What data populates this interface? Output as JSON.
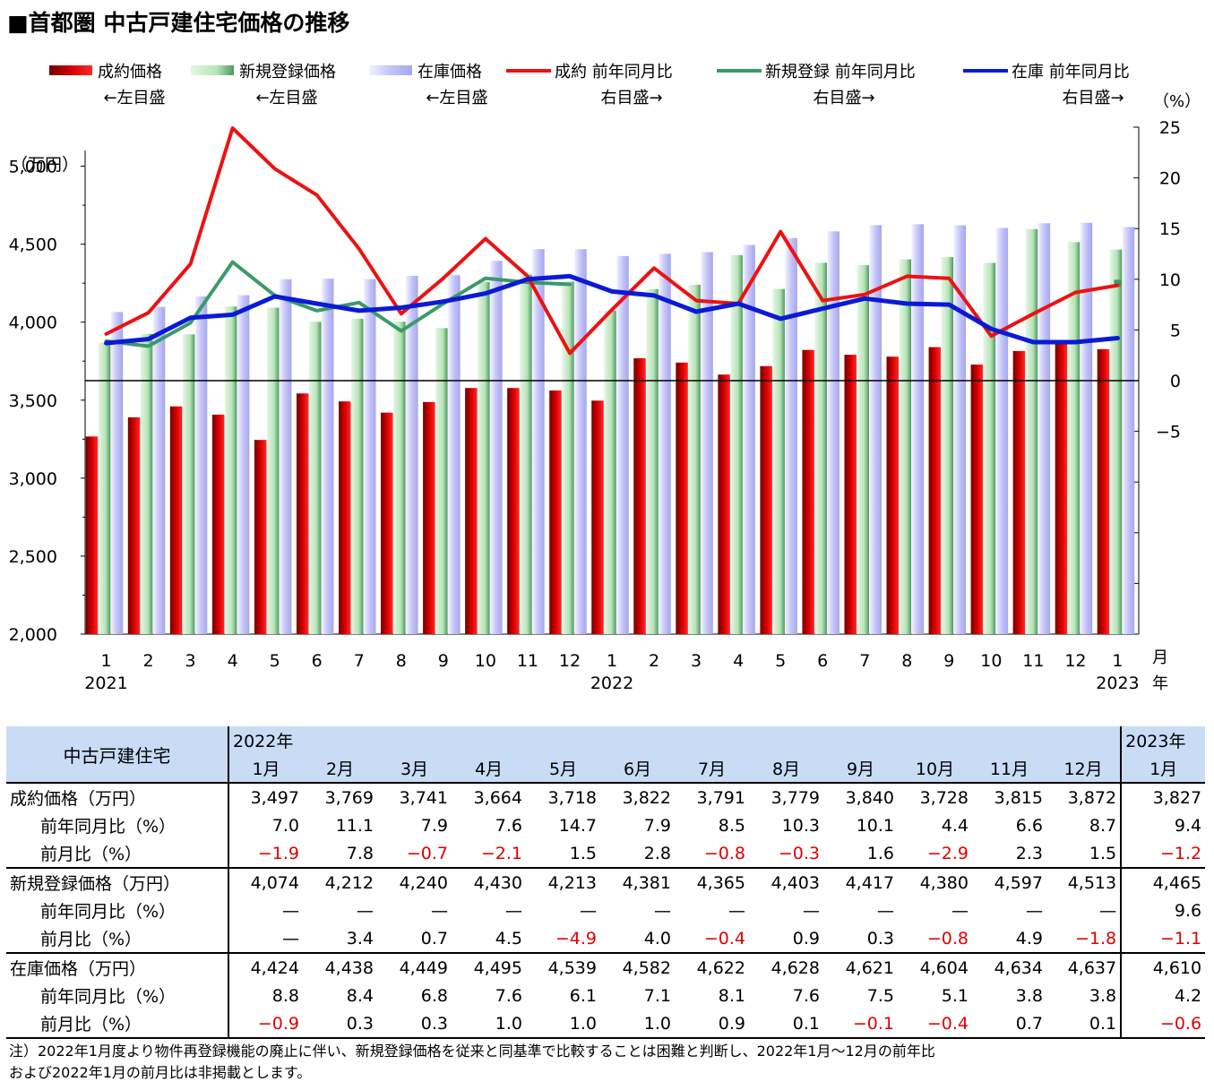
{
  "title": "■首都圏 中古戸建住宅価格の推移",
  "legend": [
    {
      "name": "成約価格",
      "sub": "←左目盛"
    },
    {
      "name": "新規登録価格",
      "sub": "←左目盛"
    },
    {
      "name": "在庫価格",
      "sub": "←左目盛"
    },
    {
      "name": "成約 前年同月比",
      "sub": "右目盛→"
    },
    {
      "name": "新規登録 前年同月比",
      "sub": "右目盛→"
    },
    {
      "name": "在庫 前年同月比",
      "sub": "右目盛→"
    }
  ],
  "colors": {
    "seiyaku_bar": "#dd0000",
    "shinki_bar": "#8fcf8f",
    "zaiko_bar": "#a6a6f0",
    "seiyaku_line": "#ee1111",
    "shinki_line": "#3a9a6a",
    "zaiko_line": "#0a1ad6",
    "header_bg": "#c9dcf6"
  },
  "chart_data": {
    "type": "bar",
    "left_axis_unit": "（万円）",
    "right_axis_unit": "（%）",
    "left_ticks": [
      "5,000",
      "4,500",
      "4,000",
      "3,500",
      "3,000",
      "2,500",
      "2,000"
    ],
    "right_ticks": [
      "25",
      "20",
      "15",
      "10",
      "5",
      "0",
      "−5"
    ],
    "ylim_left": [
      2000,
      5250
    ],
    "ylim_right": [
      -25,
      25
    ],
    "month_labels": [
      "1",
      "2",
      "3",
      "4",
      "5",
      "6",
      "7",
      "8",
      "9",
      "10",
      "11",
      "12",
      "1",
      "2",
      "3",
      "4",
      "5",
      "6",
      "7",
      "8",
      "9",
      "10",
      "11",
      "12",
      "1"
    ],
    "year_labels": [
      {
        "label": "2021",
        "index": 0
      },
      {
        "label": "2022",
        "index": 12
      },
      {
        "label": "2023",
        "index": 24
      }
    ],
    "month_suffix": "月",
    "year_suffix": "年",
    "series": [
      {
        "name": "成約価格",
        "type": "bar",
        "values": [
          3267,
          3390,
          3460,
          3407,
          3245,
          3543,
          3492,
          3420,
          3488,
          3578,
          3578,
          3562,
          3497,
          3769,
          3741,
          3664,
          3718,
          3822,
          3791,
          3779,
          3840,
          3728,
          3815,
          3872,
          3827
        ]
      },
      {
        "name": "新規登録価格",
        "type": "bar",
        "values": [
          3868,
          3925,
          3922,
          4100,
          4093,
          4002,
          4022,
          4003,
          3962,
          4257,
          4305,
          4260,
          4074,
          4212,
          4240,
          4430,
          4213,
          4381,
          4365,
          4403,
          4417,
          4380,
          4597,
          4513,
          4465
        ]
      },
      {
        "name": "在庫価格",
        "type": "bar",
        "values": [
          4065,
          4098,
          4165,
          4173,
          4275,
          4279,
          4276,
          4297,
          4301,
          4393,
          4468,
          4468,
          4424,
          4438,
          4449,
          4495,
          4539,
          4582,
          4622,
          4628,
          4621,
          4604,
          4634,
          4637,
          4610
        ]
      },
      {
        "name": "成約 前年同月比",
        "type": "line",
        "values": [
          4.6,
          6.7,
          11.5,
          24.9,
          20.9,
          18.3,
          13.0,
          6.6,
          10.1,
          14.0,
          10.3,
          2.7,
          7.0,
          11.1,
          7.9,
          7.6,
          14.7,
          7.9,
          8.5,
          10.3,
          10.1,
          4.4,
          6.6,
          8.7,
          9.4
        ]
      },
      {
        "name": "新規登録 前年同月比",
        "type": "line",
        "values": [
          3.9,
          3.4,
          5.7,
          11.7,
          8.4,
          6.9,
          7.7,
          4.9,
          7.6,
          10.1,
          9.7,
          9.5,
          null,
          null,
          null,
          null,
          null,
          null,
          null,
          null,
          null,
          null,
          null,
          null,
          9.6
        ]
      },
      {
        "name": "在庫 前年同月比",
        "type": "line",
        "values": [
          3.7,
          4.1,
          6.2,
          6.5,
          8.3,
          7.6,
          6.9,
          7.2,
          7.8,
          8.6,
          10.0,
          10.3,
          8.8,
          8.4,
          6.8,
          7.6,
          6.1,
          7.1,
          8.1,
          7.6,
          7.5,
          5.1,
          3.8,
          3.8,
          4.2
        ]
      }
    ]
  },
  "table": {
    "corner": "中古戸建住宅",
    "year_2022": "2022年",
    "year_2023": "2023年",
    "months": [
      "1月",
      "2月",
      "3月",
      "4月",
      "5月",
      "6月",
      "7月",
      "8月",
      "9月",
      "10月",
      "11月",
      "12月",
      "1月"
    ],
    "rows": [
      {
        "label": "成約価格（万円）",
        "sub": false,
        "cells": [
          "3,497",
          "3,769",
          "3,741",
          "3,664",
          "3,718",
          "3,822",
          "3,791",
          "3,779",
          "3,840",
          "3,728",
          "3,815",
          "3,872",
          "3,827"
        ]
      },
      {
        "label": "前年同月比（%）",
        "sub": true,
        "cells": [
          "7.0",
          "11.1",
          "7.9",
          "7.6",
          "14.7",
          "7.9",
          "8.5",
          "10.3",
          "10.1",
          "4.4",
          "6.6",
          "8.7",
          "9.4"
        ]
      },
      {
        "label": "前月比（%）",
        "sub": true,
        "cells": [
          "−1.9",
          "7.8",
          "−0.7",
          "−2.1",
          "1.5",
          "2.8",
          "−0.8",
          "−0.3",
          "1.6",
          "−2.9",
          "2.3",
          "1.5",
          "−1.2"
        ]
      },
      {
        "label": "新規登録価格（万円）",
        "sub": false,
        "cells": [
          "4,074",
          "4,212",
          "4,240",
          "4,430",
          "4,213",
          "4,381",
          "4,365",
          "4,403",
          "4,417",
          "4,380",
          "4,597",
          "4,513",
          "4,465"
        ]
      },
      {
        "label": "前年同月比（%）",
        "sub": true,
        "cells": [
          "—",
          "—",
          "—",
          "—",
          "—",
          "—",
          "—",
          "—",
          "—",
          "—",
          "—",
          "—",
          "9.6"
        ]
      },
      {
        "label": "前月比（%）",
        "sub": true,
        "cells": [
          "—",
          "3.4",
          "0.7",
          "4.5",
          "−4.9",
          "4.0",
          "−0.4",
          "0.9",
          "0.3",
          "−0.8",
          "4.9",
          "−1.8",
          "−1.1"
        ]
      },
      {
        "label": "在庫価格（万円）",
        "sub": false,
        "cells": [
          "4,424",
          "4,438",
          "4,449",
          "4,495",
          "4,539",
          "4,582",
          "4,622",
          "4,628",
          "4,621",
          "4,604",
          "4,634",
          "4,637",
          "4,610"
        ]
      },
      {
        "label": "前年同月比（%）",
        "sub": true,
        "cells": [
          "8.8",
          "8.4",
          "6.8",
          "7.6",
          "6.1",
          "7.1",
          "8.1",
          "7.6",
          "7.5",
          "5.1",
          "3.8",
          "3.8",
          "4.2"
        ]
      },
      {
        "label": "前月比（%）",
        "sub": true,
        "cells": [
          "−0.9",
          "0.3",
          "0.3",
          "1.0",
          "1.0",
          "1.0",
          "0.9",
          "0.1",
          "−0.1",
          "−0.4",
          "0.7",
          "0.1",
          "−0.6"
        ]
      }
    ]
  },
  "note": {
    "line1": "注）2022年1月度より物件再登録機能の廃止に伴い、新規登録価格を従来と同基準で比較することは困難と判断し、2022年1月～12月の前年比",
    "line2": "および2022年1月の前月比は非掲載とします。"
  }
}
